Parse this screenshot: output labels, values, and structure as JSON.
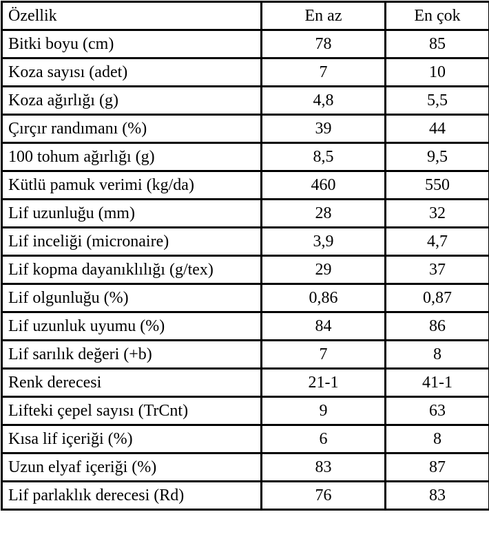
{
  "table": {
    "columns": [
      {
        "key": "property",
        "label": "Özellik"
      },
      {
        "key": "min",
        "label": "En az"
      },
      {
        "key": "max",
        "label": "En çok"
      }
    ],
    "rows": [
      {
        "property": "Bitki boyu (cm)",
        "min": "78",
        "max": "85"
      },
      {
        "property": "Koza sayısı (adet)",
        "min": "7",
        "max": "10"
      },
      {
        "property": "Koza ağırlığı (g)",
        "min": "4,8",
        "max": "5,5"
      },
      {
        "property": "Çırçır randımanı (%)",
        "min": "39",
        "max": "44"
      },
      {
        "property": "100 tohum ağırlığı (g)",
        "min": "8,5",
        "max": "9,5"
      },
      {
        "property": "Kütlü pamuk verimi (kg/da)",
        "min": "460",
        "max": "550"
      },
      {
        "property": "Lif uzunluğu (mm)",
        "min": "28",
        "max": "32"
      },
      {
        "property": "Lif inceliği (micronaire)",
        "min": "3,9",
        "max": "4,7"
      },
      {
        "property": "Lif kopma dayanıklılığı (g/tex)",
        "min": "29",
        "max": "37"
      },
      {
        "property": "Lif olgunluğu (%)",
        "min": "0,86",
        "max": "0,87"
      },
      {
        "property": "Lif uzunluk uyumu (%)",
        "min": "84",
        "max": "86"
      },
      {
        "property": "Lif sarılık değeri (+b)",
        "min": "7",
        "max": "8"
      },
      {
        "property": "Renk derecesi",
        "min": "21-1",
        "max": "41-1"
      },
      {
        "property": "Lifteki çepel sayısı (TrCnt)",
        "min": "9",
        "max": "63"
      },
      {
        "property": "Kısa lif içeriği (%)",
        "min": "6",
        "max": "8"
      },
      {
        "property": "Uzun elyaf içeriği (%)",
        "min": "83",
        "max": "87"
      },
      {
        "property": "Lif parlaklık derecesi (Rd)",
        "min": "76",
        "max": "83"
      }
    ],
    "colors": {
      "border": "#000000",
      "text": "#000000",
      "background": "#ffffff"
    }
  }
}
